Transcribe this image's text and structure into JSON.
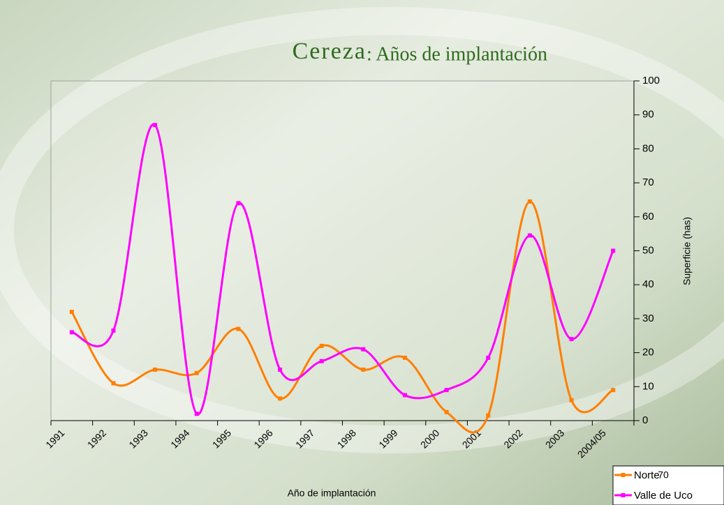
{
  "chart_data": {
    "type": "line",
    "title": "Cereza",
    "subtitle": ": Años de implantación",
    "x_label": "Año de implantación",
    "y_label": "Superficie (has)",
    "categories": [
      "1991",
      "1992",
      "1993",
      "1994",
      "1995",
      "1996",
      "1997",
      "1998",
      "1999",
      "2000",
      "2001",
      "2002",
      "2003",
      "2004/05"
    ],
    "series": [
      {
        "name": "Norte",
        "color": "#ff7f00",
        "values": [
          32,
          11,
          15,
          14,
          27,
          6.5,
          22,
          15,
          18.5,
          2.5,
          1.5,
          64.5,
          6,
          9
        ]
      },
      {
        "name": "Valle de Uco",
        "color": "#ff00ff",
        "values": [
          26,
          26.5,
          87,
          2,
          64,
          15,
          17.5,
          21,
          7.5,
          9,
          18.5,
          54.5,
          24,
          50
        ]
      }
    ],
    "ylim": [
      0,
      100
    ],
    "yticks": [
      0,
      10,
      20,
      30,
      40,
      50,
      60,
      70,
      80,
      90,
      100
    ],
    "smooth": true,
    "legend": "bottom-right",
    "slide_number": "70"
  }
}
